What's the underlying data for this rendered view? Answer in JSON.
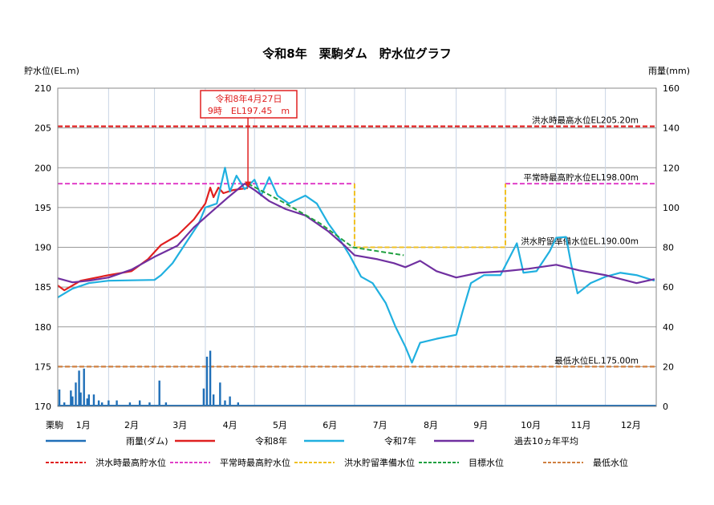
{
  "chart_data": {
    "type": "line",
    "title": "令和8年　栗駒ダム　貯水位グラフ",
    "ylabel": "貯水位(EL.m)",
    "y2label": "雨量(mm)",
    "x_corner_label": "栗駒",
    "ylim": [
      170,
      210
    ],
    "y_ticks": [
      "210",
      "205",
      "200",
      "195",
      "190",
      "185",
      "180",
      "175",
      "170"
    ],
    "y2lim": [
      0,
      160
    ],
    "y2_ticks": [
      "160",
      "140",
      "120",
      "100",
      "80",
      "60",
      "40",
      "20",
      "0"
    ],
    "months": [
      "1月",
      "2月",
      "3月",
      "4月",
      "5月",
      "6月",
      "7月",
      "8月",
      "9月",
      "10月",
      "11月",
      "12月"
    ],
    "grid": true,
    "legend_placement": "bottom",
    "annotation": {
      "line1": "令和8年4月27日",
      "line2": "9時　EL197.45　m",
      "date": "4/27",
      "value": 197.45,
      "color": "#e02020"
    },
    "reference_lines": [
      {
        "name": "洪水時最高水位",
        "label": "洪水時最高水位EL205.20m",
        "value": 205.2,
        "color": "#e02020"
      },
      {
        "name": "平常時最高貯水位",
        "label": "平常時最高貯水位EL198.00m",
        "value": 198.0,
        "color": "#e040c8"
      },
      {
        "name": "洪水貯留準備水位",
        "label": "洪水貯留準備水位EL.190.00m",
        "value": 190.0,
        "color": "#f0c020"
      },
      {
        "name": "最低水位",
        "label": "最低水位EL.175.00m",
        "value": 175.0,
        "color": "#d08040"
      }
    ],
    "flood_prep_steps": [
      [
        "1/1",
        198
      ],
      [
        "7/1",
        198
      ],
      [
        "7/1",
        190
      ],
      [
        "10/1",
        190
      ],
      [
        "10/1",
        198
      ],
      [
        "12/31",
        198
      ]
    ],
    "normal_max_segments": [
      [
        [
          "1/1",
          198
        ],
        [
          "7/1",
          198
        ]
      ],
      [
        [
          "10/1",
          198
        ],
        [
          "12/31",
          198
        ]
      ]
    ],
    "series": [
      {
        "name": "雨量(ダム)",
        "type": "bar",
        "axis": "right",
        "color": "#1f6fb8",
        "points": [
          [
            "1/2",
            8.5
          ],
          [
            "1/5",
            2
          ],
          [
            "1/9",
            8
          ],
          [
            "1/10",
            5
          ],
          [
            "1/12",
            12
          ],
          [
            "1/14",
            18
          ],
          [
            "1/15",
            7
          ],
          [
            "1/17",
            19
          ],
          [
            "1/19",
            4
          ],
          [
            "1/20",
            6
          ],
          [
            "1/23",
            6
          ],
          [
            "1/26",
            3
          ],
          [
            "1/28",
            2
          ],
          [
            "2/1",
            3
          ],
          [
            "2/6",
            3
          ],
          [
            "2/14",
            2
          ],
          [
            "2/20",
            3
          ],
          [
            "2/26",
            2
          ],
          [
            "3/4",
            13
          ],
          [
            "3/8",
            2
          ],
          [
            "3/31",
            9
          ],
          [
            "4/2",
            25
          ],
          [
            "4/4",
            28
          ],
          [
            "4/6",
            6
          ],
          [
            "4/10",
            12
          ],
          [
            "4/13",
            3
          ],
          [
            "4/16",
            5
          ],
          [
            "4/21",
            2
          ]
        ]
      },
      {
        "name": "令和8年",
        "type": "line",
        "color": "#e02020",
        "points": [
          [
            "1/1",
            185.2
          ],
          [
            "1/5",
            184.6
          ],
          [
            "1/15",
            185.8
          ],
          [
            "2/1",
            186.5
          ],
          [
            "2/15",
            187
          ],
          [
            "2/25",
            188.5
          ],
          [
            "3/5",
            190.3
          ],
          [
            "3/15",
            191.5
          ],
          [
            "3/25",
            193.5
          ],
          [
            "4/1",
            195.5
          ],
          [
            "4/4",
            197.5
          ],
          [
            "4/6",
            196.3
          ],
          [
            "4/9",
            197.5
          ],
          [
            "4/12",
            196.8
          ],
          [
            "4/18",
            197.2
          ],
          [
            "4/27",
            197.45
          ]
        ]
      },
      {
        "name": "令和7年",
        "type": "line",
        "color": "#20b0e0",
        "points": [
          [
            "1/1",
            183.7
          ],
          [
            "1/10",
            184.8
          ],
          [
            "1/20",
            185.5
          ],
          [
            "2/1",
            185.8
          ],
          [
            "3/1",
            185.9
          ],
          [
            "3/5",
            186.5
          ],
          [
            "3/12",
            188
          ],
          [
            "3/20",
            190.5
          ],
          [
            "3/28",
            193
          ],
          [
            "4/1",
            195
          ],
          [
            "4/8",
            195.5
          ],
          [
            "4/13",
            200
          ],
          [
            "4/16",
            197
          ],
          [
            "4/20",
            199
          ],
          [
            "4/25",
            197.3
          ],
          [
            "5/1",
            198.5
          ],
          [
            "5/5",
            196.5
          ],
          [
            "5/10",
            198.8
          ],
          [
            "5/15",
            196.5
          ],
          [
            "5/22",
            195.5
          ],
          [
            "6/1",
            196.5
          ],
          [
            "6/8",
            195.5
          ],
          [
            "6/15",
            193
          ],
          [
            "6/22",
            191
          ],
          [
            "6/28",
            189
          ],
          [
            "7/5",
            186.3
          ],
          [
            "7/12",
            185.5
          ],
          [
            "7/20",
            183
          ],
          [
            "7/26",
            180
          ],
          [
            "8/1",
            177.5
          ],
          [
            "8/5",
            175.5
          ],
          [
            "8/10",
            178
          ],
          [
            "8/20",
            178.5
          ],
          [
            "9/1",
            179
          ],
          [
            "9/5",
            182
          ],
          [
            "9/10",
            185.5
          ],
          [
            "9/18",
            186.5
          ],
          [
            "9/28",
            186.5
          ],
          [
            "10/3",
            188.5
          ],
          [
            "10/8",
            190.5
          ],
          [
            "10/12",
            186.8
          ],
          [
            "10/20",
            187
          ],
          [
            "10/28",
            189.5
          ],
          [
            "11/1",
            191.2
          ],
          [
            "11/7",
            191.3
          ],
          [
            "11/10",
            188
          ],
          [
            "11/14",
            184.2
          ],
          [
            "11/22",
            185.5
          ],
          [
            "12/1",
            186.3
          ],
          [
            "12/10",
            186.8
          ],
          [
            "12/20",
            186.5
          ],
          [
            "12/31",
            185.8
          ]
        ]
      },
      {
        "name": "過去10ヵ年平均",
        "type": "line",
        "color": "#7030a0",
        "points": [
          [
            "1/1",
            186.1
          ],
          [
            "1/10",
            185.6
          ],
          [
            "1/20",
            185.8
          ],
          [
            "2/1",
            186.2
          ],
          [
            "2/15",
            187.2
          ],
          [
            "3/1",
            188.8
          ],
          [
            "3/15",
            190.2
          ],
          [
            "3/25",
            192.5
          ],
          [
            "4/5",
            194.5
          ],
          [
            "4/15",
            196.3
          ],
          [
            "4/25",
            198
          ],
          [
            "5/1",
            197.2
          ],
          [
            "5/10",
            195.8
          ],
          [
            "5/20",
            194.8
          ],
          [
            "6/1",
            194
          ],
          [
            "6/15",
            192
          ],
          [
            "6/25",
            190.2
          ],
          [
            "7/1",
            189
          ],
          [
            "7/15",
            188.5
          ],
          [
            "7/25",
            188
          ],
          [
            "8/1",
            187.5
          ],
          [
            "8/10",
            188.3
          ],
          [
            "8/20",
            187
          ],
          [
            "9/1",
            186.2
          ],
          [
            "9/15",
            186.8
          ],
          [
            "10/1",
            187
          ],
          [
            "10/15",
            187.3
          ],
          [
            "11/1",
            187.8
          ],
          [
            "11/15",
            187.1
          ],
          [
            "12/1",
            186.5
          ],
          [
            "12/20",
            185.5
          ],
          [
            "12/31",
            186
          ]
        ]
      },
      {
        "name": "目標水位",
        "type": "line",
        "dashed": true,
        "color": "#20a040",
        "points": [
          [
            "4/27",
            198
          ],
          [
            "5/20",
            195.5
          ],
          [
            "6/10",
            193
          ],
          [
            "6/30",
            190
          ],
          [
            "7/31",
            189
          ]
        ]
      }
    ],
    "legend": [
      {
        "label": "雨量(ダム)",
        "color": "#1f6fb8",
        "dashed": false
      },
      {
        "label": "令和8年",
        "color": "#e02020",
        "dashed": false
      },
      {
        "label": "令和7年",
        "color": "#20b0e0",
        "dashed": false
      },
      {
        "label": "過去10ヵ年平均",
        "color": "#7030a0",
        "dashed": false
      },
      {
        "label": "洪水時最高貯水位",
        "color": "#e02020",
        "dashed": true
      },
      {
        "label": "平常時最高貯水位",
        "color": "#e040c8",
        "dashed": true
      },
      {
        "label": "洪水貯留準備水位",
        "color": "#f0c020",
        "dashed": true
      },
      {
        "label": "目標水位",
        "color": "#20a040",
        "dashed": true
      },
      {
        "label": "最低水位",
        "color": "#d08040",
        "dashed": true
      }
    ]
  }
}
